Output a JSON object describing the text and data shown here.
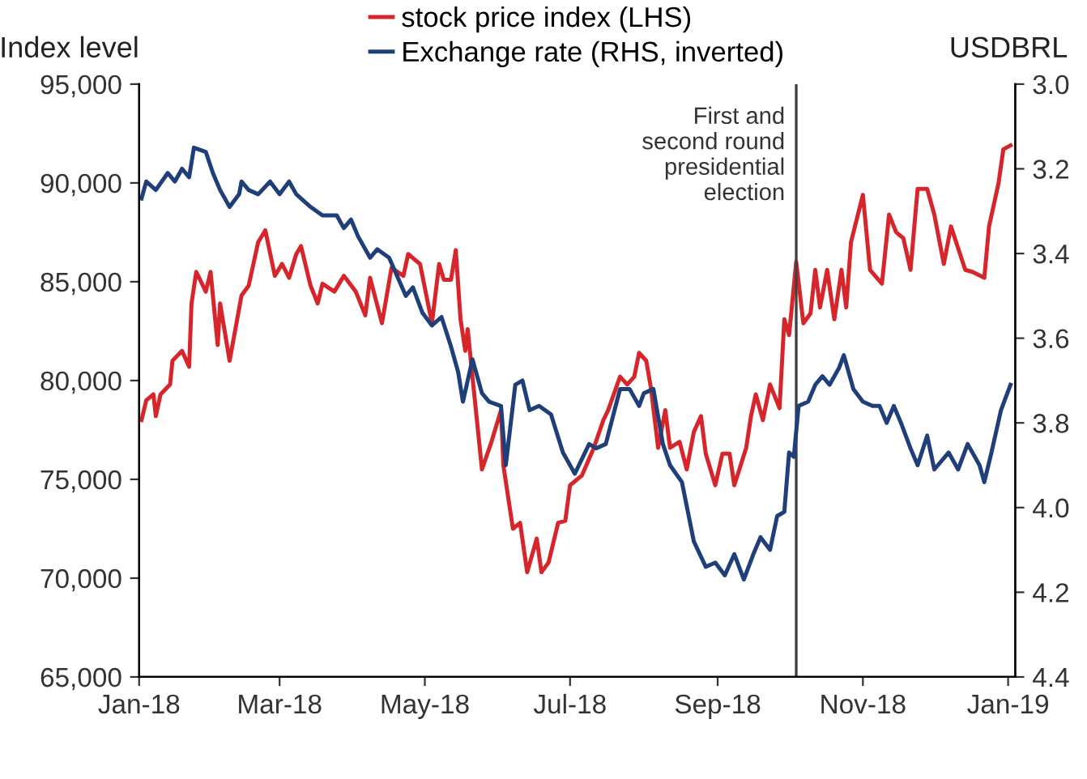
{
  "chart_data": {
    "type": "line",
    "ylabel": "Index level",
    "y2label": "USDBRL",
    "legend": "top",
    "grid": false,
    "xlim": [
      "2018-01-01",
      "2019-01-04"
    ],
    "xticks": [
      {
        "value": "2018-01-01",
        "label": "Jan-18"
      },
      {
        "value": "2018-03-01",
        "label": "Mar-18"
      },
      {
        "value": "2018-05-01",
        "label": "May-18"
      },
      {
        "value": "2018-07-01",
        "label": "Jul-18"
      },
      {
        "value": "2018-09-01",
        "label": "Sep-18"
      },
      {
        "value": "2018-11-01",
        "label": "Nov-18"
      },
      {
        "value": "2019-01-01",
        "label": "Jan-19"
      }
    ],
    "ylim": [
      65000,
      95000
    ],
    "yticks": [
      {
        "value": 65000,
        "label": "65,000"
      },
      {
        "value": 70000,
        "label": "70,000"
      },
      {
        "value": 75000,
        "label": "75,000"
      },
      {
        "value": 80000,
        "label": "80,000"
      },
      {
        "value": 85000,
        "label": "85,000"
      },
      {
        "value": 90000,
        "label": "90,000"
      },
      {
        "value": 95000,
        "label": "95,000"
      }
    ],
    "y2lim": [
      4.4,
      3.0
    ],
    "y2ticks": [
      {
        "value": 3.0,
        "label": "3.0"
      },
      {
        "value": 3.2,
        "label": "3.2"
      },
      {
        "value": 3.4,
        "label": "3.4"
      },
      {
        "value": 3.6,
        "label": "3.6"
      },
      {
        "value": 3.8,
        "label": "3.8"
      },
      {
        "value": 4.0,
        "label": "4.0"
      },
      {
        "value": 4.2,
        "label": "4.2"
      },
      {
        "value": 4.4,
        "label": "4.4"
      }
    ],
    "ref_lines": [
      {
        "axis": "x",
        "value": "2018-10-04",
        "label": "First and\nsecond round\npresidential\nelection",
        "color": "#404040"
      }
    ],
    "series": [
      {
        "name": "stock price index (LHS)",
        "color": "#d7262b",
        "x": [
          "2018-01-02",
          "2018-01-04",
          "2018-01-07",
          "2018-01-08",
          "2018-01-10",
          "2018-01-14",
          "2018-01-15",
          "2018-01-19",
          "2018-01-22",
          "2018-01-23",
          "2018-01-25",
          "2018-01-29",
          "2018-01-31",
          "2018-02-03",
          "2018-02-04",
          "2018-02-08",
          "2018-02-13",
          "2018-02-16",
          "2018-02-20",
          "2018-02-23",
          "2018-02-27",
          "2018-03-02",
          "2018-03-05",
          "2018-03-08",
          "2018-03-10",
          "2018-03-14",
          "2018-03-17",
          "2018-03-19",
          "2018-03-24",
          "2018-03-28",
          "2018-04-02",
          "2018-04-06",
          "2018-04-08",
          "2018-04-13",
          "2018-04-17",
          "2018-04-22",
          "2018-04-24",
          "2018-04-29",
          "2018-05-04",
          "2018-05-07",
          "2018-05-09",
          "2018-05-12",
          "2018-05-14",
          "2018-05-16",
          "2018-05-18",
          "2018-05-19",
          "2018-05-21",
          "2018-05-25",
          "2018-05-29",
          "2018-06-02",
          "2018-06-03",
          "2018-06-07",
          "2018-06-10",
          "2018-06-13",
          "2018-06-17",
          "2018-06-19",
          "2018-06-22",
          "2018-06-26",
          "2018-06-29",
          "2018-07-01",
          "2018-07-06",
          "2018-07-11",
          "2018-07-15",
          "2018-07-17",
          "2018-07-22",
          "2018-07-25",
          "2018-07-28",
          "2018-07-30",
          "2018-08-02",
          "2018-08-04",
          "2018-08-07",
          "2018-08-10",
          "2018-08-12",
          "2018-08-16",
          "2018-08-19",
          "2018-08-22",
          "2018-08-25",
          "2018-08-27",
          "2018-08-31",
          "2018-09-03",
          "2018-09-06",
          "2018-09-08",
          "2018-09-13",
          "2018-09-15",
          "2018-09-17",
          "2018-09-20",
          "2018-09-23",
          "2018-09-27",
          "2018-09-29",
          "2018-10-01",
          "2018-10-04",
          "2018-10-07",
          "2018-10-10",
          "2018-10-12",
          "2018-10-14",
          "2018-10-17",
          "2018-10-20",
          "2018-10-23",
          "2018-10-25",
          "2018-10-27",
          "2018-11-01",
          "2018-11-04",
          "2018-11-09",
          "2018-11-12",
          "2018-11-15",
          "2018-11-18",
          "2018-11-21",
          "2018-11-24",
          "2018-11-28",
          "2018-12-01",
          "2018-12-05",
          "2018-12-08",
          "2018-12-11",
          "2018-12-14",
          "2018-12-17",
          "2018-12-22",
          "2018-12-24",
          "2018-12-28",
          "2018-12-30",
          "2019-01-02"
        ],
        "values": [
          78000,
          79000,
          79300,
          78200,
          79300,
          79800,
          81000,
          81500,
          80700,
          83900,
          85500,
          84500,
          85500,
          81800,
          83900,
          81000,
          84300,
          84800,
          87000,
          87600,
          85300,
          85900,
          85200,
          86400,
          86800,
          84800,
          83900,
          84900,
          84500,
          85300,
          84500,
          83300,
          85200,
          82900,
          85700,
          85300,
          86400,
          85900,
          82900,
          85900,
          85100,
          85100,
          86600,
          83100,
          81500,
          82600,
          80200,
          75500,
          76900,
          78500,
          75700,
          72500,
          72800,
          70300,
          72000,
          70300,
          70800,
          72800,
          72900,
          74700,
          75200,
          76600,
          78000,
          78500,
          80200,
          79800,
          80200,
          81400,
          81000,
          79600,
          76600,
          78500,
          76600,
          76900,
          75500,
          77400,
          78200,
          76300,
          74700,
          76300,
          76300,
          74700,
          76600,
          78200,
          79300,
          78000,
          79800,
          78600,
          83100,
          82300,
          86000,
          82900,
          83400,
          85600,
          83700,
          85600,
          83100,
          85600,
          83700,
          87000,
          89400,
          85600,
          84900,
          88400,
          87500,
          87200,
          85600,
          89700,
          89700,
          88400,
          85900,
          87800,
          86700,
          85600,
          85500,
          85200,
          87800,
          90000,
          91700,
          91900
        ]
      },
      {
        "name": "Exchange rate (RHS, inverted)",
        "color": "#1f3f7a",
        "axis": "y2",
        "x": [
          "2018-01-02",
          "2018-01-04",
          "2018-01-08",
          "2018-01-13",
          "2018-01-16",
          "2018-01-19",
          "2018-01-22",
          "2018-01-24",
          "2018-01-29",
          "2018-02-01",
          "2018-02-04",
          "2018-02-08",
          "2018-02-12",
          "2018-02-13",
          "2018-02-16",
          "2018-02-20",
          "2018-02-25",
          "2018-03-01",
          "2018-03-05",
          "2018-03-08",
          "2018-03-14",
          "2018-03-19",
          "2018-03-25",
          "2018-03-28",
          "2018-03-31",
          "2018-04-03",
          "2018-04-08",
          "2018-04-11",
          "2018-04-16",
          "2018-04-23",
          "2018-04-26",
          "2018-04-30",
          "2018-05-04",
          "2018-05-08",
          "2018-05-12",
          "2018-05-15",
          "2018-05-17",
          "2018-05-21",
          "2018-05-25",
          "2018-05-28",
          "2018-06-02",
          "2018-06-04",
          "2018-06-08",
          "2018-06-11",
          "2018-06-14",
          "2018-06-18",
          "2018-06-23",
          "2018-06-28",
          "2018-07-03",
          "2018-07-09",
          "2018-07-12",
          "2018-07-16",
          "2018-07-22",
          "2018-07-26",
          "2018-07-30",
          "2018-08-01",
          "2018-08-05",
          "2018-08-09",
          "2018-08-12",
          "2018-08-17",
          "2018-08-22",
          "2018-08-27",
          "2018-08-31",
          "2018-09-04",
          "2018-09-08",
          "2018-09-12",
          "2018-09-16",
          "2018-09-19",
          "2018-09-23",
          "2018-09-26",
          "2018-09-29",
          "2018-10-01",
          "2018-10-03",
          "2018-10-05",
          "2018-10-09",
          "2018-10-12",
          "2018-10-15",
          "2018-10-18",
          "2018-10-22",
          "2018-10-24",
          "2018-10-28",
          "2018-11-01",
          "2018-11-05",
          "2018-11-08",
          "2018-11-11",
          "2018-11-14",
          "2018-11-17",
          "2018-11-21",
          "2018-11-24",
          "2018-11-28",
          "2018-12-01",
          "2018-12-07",
          "2018-12-11",
          "2018-12-15",
          "2018-12-20",
          "2018-12-22",
          "2018-12-25",
          "2018-12-29",
          "2019-01-02"
        ],
        "values": [
          3.27,
          3.23,
          3.25,
          3.21,
          3.23,
          3.2,
          3.22,
          3.15,
          3.16,
          3.21,
          3.25,
          3.29,
          3.26,
          3.23,
          3.25,
          3.26,
          3.23,
          3.26,
          3.23,
          3.26,
          3.29,
          3.31,
          3.31,
          3.34,
          3.32,
          3.36,
          3.41,
          3.39,
          3.41,
          3.5,
          3.48,
          3.54,
          3.57,
          3.55,
          3.62,
          3.68,
          3.75,
          3.65,
          3.73,
          3.75,
          3.76,
          3.9,
          3.71,
          3.7,
          3.77,
          3.76,
          3.78,
          3.87,
          3.92,
          3.85,
          3.86,
          3.85,
          3.72,
          3.72,
          3.76,
          3.73,
          3.72,
          3.85,
          3.9,
          3.94,
          4.08,
          4.14,
          4.13,
          4.16,
          4.11,
          4.17,
          4.11,
          4.07,
          4.1,
          4.02,
          4.01,
          3.87,
          3.88,
          3.76,
          3.75,
          3.71,
          3.69,
          3.71,
          3.67,
          3.64,
          3.72,
          3.75,
          3.76,
          3.76,
          3.8,
          3.76,
          3.8,
          3.86,
          3.9,
          3.83,
          3.91,
          3.87,
          3.91,
          3.85,
          3.9,
          3.94,
          3.87,
          3.77,
          3.71
        ]
      }
    ]
  }
}
